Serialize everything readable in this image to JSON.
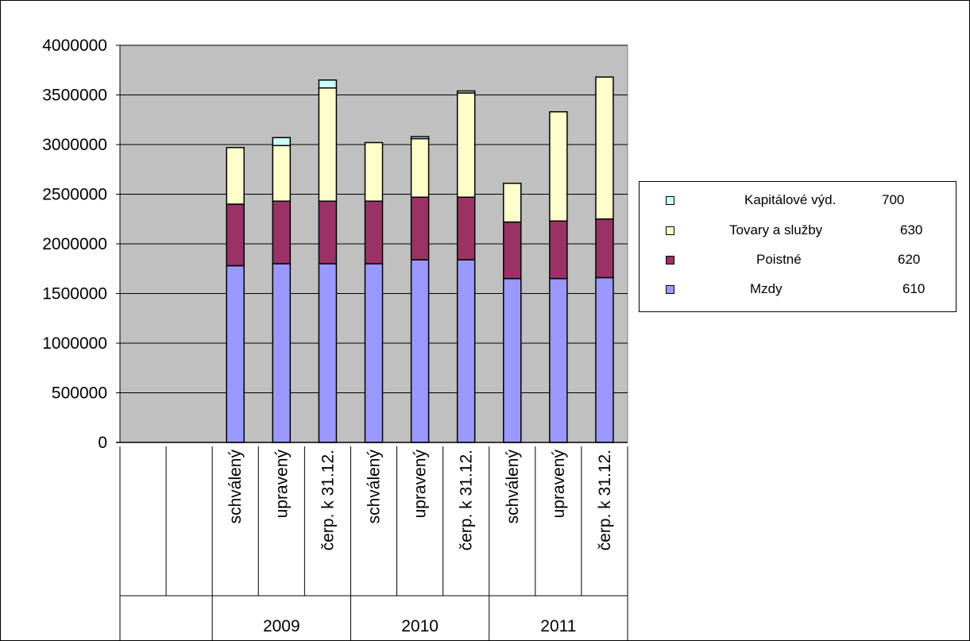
{
  "chart_data": {
    "type": "bar",
    "stacked": true,
    "ylim": [
      0,
      4000000
    ],
    "yticks": [
      0,
      500000,
      1000000,
      1500000,
      2000000,
      2500000,
      3000000,
      3500000,
      4000000
    ],
    "grid": true,
    "legend_position": "right",
    "categories": [
      "",
      "",
      "schválený",
      "upravený",
      "čerp. k 31.12.",
      "schválený",
      "upravený",
      "čerp. k 31.12.",
      "schválený",
      "upravený",
      "čerp. k 31.12."
    ],
    "groups": [
      {
        "label": "",
        "span": 2
      },
      {
        "label": "2009",
        "span": 3
      },
      {
        "label": "2010",
        "span": 3
      },
      {
        "label": "2011",
        "span": 3
      }
    ],
    "series": [
      {
        "name": "Mzdy",
        "code": "610",
        "color": "#9999ff",
        "values": [
          0,
          0,
          1780000,
          1800000,
          1800000,
          1800000,
          1840000,
          1840000,
          1650000,
          1650000,
          1660000
        ]
      },
      {
        "name": "Poistné",
        "code": "620",
        "color": "#993366",
        "values": [
          0,
          0,
          620000,
          630000,
          630000,
          630000,
          630000,
          630000,
          570000,
          580000,
          590000
        ]
      },
      {
        "name": "Tovary a služby",
        "code": "630",
        "color": "#ffffcc",
        "values": [
          0,
          0,
          570000,
          560000,
          1140000,
          590000,
          590000,
          1050000,
          390000,
          1100000,
          1430000
        ]
      },
      {
        "name": "Kapitálové výd.",
        "code": "700",
        "color": "#ccffff",
        "values": [
          0,
          0,
          0,
          80000,
          80000,
          0,
          20000,
          20000,
          0,
          0,
          0
        ]
      }
    ]
  },
  "colors": {
    "plot_background": "#c0c0c0",
    "gridline": "#000000"
  }
}
